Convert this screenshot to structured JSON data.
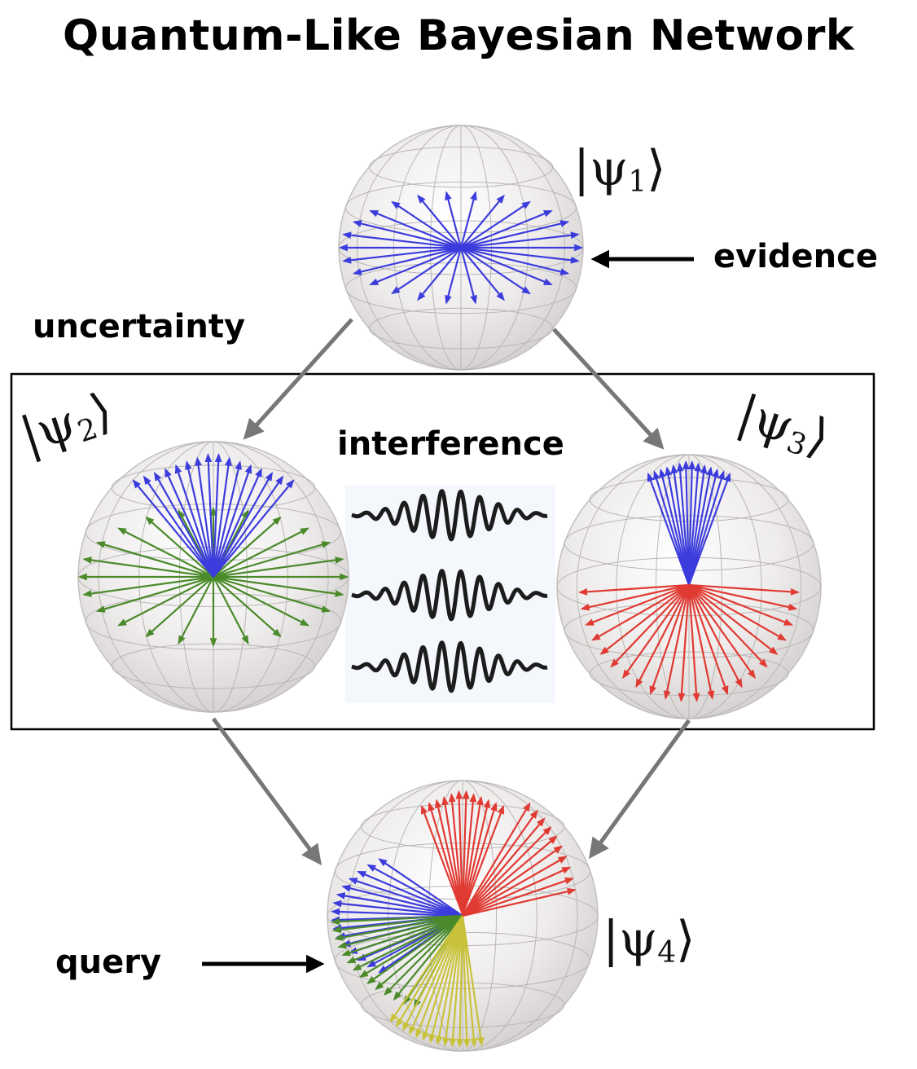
{
  "title": "Quantum-Like Bayesian Network",
  "labels": {
    "evidence": "evidence",
    "uncertainty": "uncertainty",
    "interference": "interference",
    "query": "query"
  },
  "nodes": [
    {
      "id": "psi1",
      "ket": "|ψ",
      "sub": "1",
      "close": "⟩",
      "vector_colors": [
        "#3c3cdc"
      ]
    },
    {
      "id": "psi2",
      "ket": "|ψ",
      "sub": "2",
      "close": "⟩",
      "vector_colors": [
        "#3c3cdc",
        "#4a8a2a"
      ]
    },
    {
      "id": "psi3",
      "ket": "|ψ",
      "sub": "3",
      "close": "⟩",
      "vector_colors": [
        "#3c3cdc",
        "#e03a32"
      ]
    },
    {
      "id": "psi4",
      "ket": "|ψ",
      "sub": "4",
      "close": "⟩",
      "vector_colors": [
        "#3c3cdc",
        "#e03a32",
        "#4a8a2a",
        "#c8c23a"
      ]
    }
  ],
  "edges": [
    {
      "from": "psi1",
      "to": "psi2"
    },
    {
      "from": "psi1",
      "to": "psi3"
    },
    {
      "from": "psi2",
      "to": "psi4"
    },
    {
      "from": "psi3",
      "to": "psi4"
    }
  ],
  "colors": {
    "blue": "#3c3cdc",
    "green": "#4a8a2a",
    "red": "#e03a32",
    "yellow": "#c8c23a",
    "edge": "#777777",
    "sphere": "#e9e6e6"
  }
}
